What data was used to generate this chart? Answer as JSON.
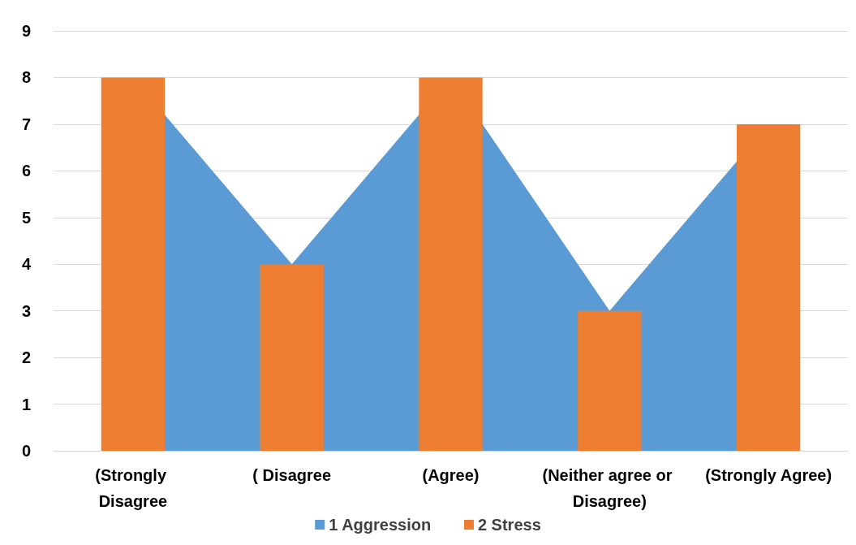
{
  "chart_data": {
    "type": "bar",
    "categories": [
      "(Strongly Disagree",
      "( Disagree",
      "(Agree)",
      "(Neither agree or Disagree)",
      "(Strongly Agree)"
    ],
    "series": [
      {
        "name": "1 Aggression",
        "type": "area",
        "color": "#5b9bd5",
        "values": [
          8,
          4,
          8,
          3,
          7
        ]
      },
      {
        "name": "2 Stress",
        "color": "#ed7d31",
        "values": [
          8,
          4,
          8,
          3,
          7
        ]
      }
    ],
    "ylim": [
      0,
      9
    ],
    "yticks": [
      0,
      1,
      2,
      3,
      4,
      5,
      6,
      7,
      8,
      9
    ],
    "grid": "y",
    "legend": "bottom"
  }
}
